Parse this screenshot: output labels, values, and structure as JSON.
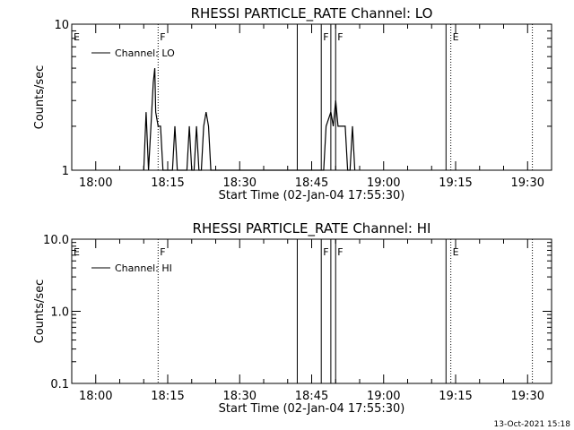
{
  "colors": {
    "background": "#ffffff",
    "foreground": "#000000"
  },
  "footer": {
    "date_stamp": "13-Oct-2021 15:18"
  },
  "chart_data": [
    {
      "type": "line",
      "title": "RHESSI PARTICLE_RATE Channel: LO",
      "xlabel": "Start Time (02-Jan-04 17:55:30)",
      "ylabel": "Counts/sec",
      "y_scale": "log",
      "ylim": [
        1,
        10
      ],
      "y_ticks": [
        {
          "value": 1,
          "label": "1"
        },
        {
          "value": 10,
          "label": "10"
        }
      ],
      "xlim": [
        "17:55",
        "19:35"
      ],
      "x_ticks": [
        "18:00",
        "18:15",
        "18:30",
        "18:45",
        "19:00",
        "19:15",
        "19:30"
      ],
      "legend": {
        "label": "Channel: LO",
        "placement": "top-left"
      },
      "markers": [
        {
          "time": "17:55",
          "label": "E",
          "style": "dotted"
        },
        {
          "time": "18:13",
          "label": "F",
          "style": "dotted"
        },
        {
          "time": "18:42",
          "label": "",
          "style": "solid"
        },
        {
          "time": "18:47",
          "label": "F",
          "style": "solid"
        },
        {
          "time": "18:49",
          "label": "",
          "style": "solid"
        },
        {
          "time": "18:50",
          "label": "F",
          "style": "solid"
        },
        {
          "time": "19:13",
          "label": "",
          "style": "solid"
        },
        {
          "time": "19:14",
          "label": "E",
          "style": "dotted"
        },
        {
          "time": "19:31",
          "label": "",
          "style": "dotted"
        }
      ],
      "series": [
        {
          "name": "Channel: LO",
          "points": [
            [
              "18:10",
              1
            ],
            [
              "18:10.5",
              2.5
            ],
            [
              "18:11",
              1
            ],
            [
              "18:11.5",
              2
            ],
            [
              "18:12",
              4
            ],
            [
              "18:12.3",
              5
            ],
            [
              "18:12.5",
              2.5
            ],
            [
              "18:13",
              2
            ],
            [
              "18:13.5",
              2
            ],
            [
              "18:14",
              1
            ],
            [
              "18:16",
              1
            ],
            [
              "18:16.5",
              2
            ],
            [
              "18:17",
              1
            ],
            [
              "18:19",
              1
            ],
            [
              "18:19.5",
              2
            ],
            [
              "18:20",
              1
            ],
            [
              "18:20.5",
              1
            ],
            [
              "18:21",
              2
            ],
            [
              "18:21.5",
              1
            ],
            [
              "18:22",
              1
            ],
            [
              "18:22.5",
              2
            ],
            [
              "18:23",
              2.5
            ],
            [
              "18:23.5",
              2
            ],
            [
              "18:24",
              1
            ],
            [
              "18:47.5",
              1
            ],
            [
              "18:48",
              2
            ],
            [
              "18:49",
              2.5
            ],
            [
              "18:49.5",
              2
            ],
            [
              "18:50",
              3
            ],
            [
              "18:50.5",
              2
            ],
            [
              "18:51",
              2
            ],
            [
              "18:52",
              2
            ],
            [
              "18:52.5",
              1
            ],
            [
              "18:53",
              1
            ],
            [
              "18:53.5",
              2
            ],
            [
              "18:54",
              1
            ]
          ]
        }
      ]
    },
    {
      "type": "line",
      "title": "RHESSI PARTICLE_RATE Channel: HI",
      "xlabel": "Start Time (02-Jan-04 17:55:30)",
      "ylabel": "Counts/sec",
      "y_scale": "log",
      "ylim": [
        0.1,
        10
      ],
      "y_ticks": [
        {
          "value": 0.1,
          "label": "0.1"
        },
        {
          "value": 1,
          "label": "1.0"
        },
        {
          "value": 10,
          "label": "10.0"
        }
      ],
      "xlim": [
        "17:55",
        "19:35"
      ],
      "x_ticks": [
        "18:00",
        "18:15",
        "18:30",
        "18:45",
        "19:00",
        "19:15",
        "19:30"
      ],
      "legend": {
        "label": "Channel: HI",
        "placement": "top-left"
      },
      "markers": [
        {
          "time": "17:55",
          "label": "E",
          "style": "dotted"
        },
        {
          "time": "18:13",
          "label": "F",
          "style": "dotted"
        },
        {
          "time": "18:42",
          "label": "",
          "style": "solid"
        },
        {
          "time": "18:47",
          "label": "F",
          "style": "solid"
        },
        {
          "time": "18:49",
          "label": "",
          "style": "solid"
        },
        {
          "time": "18:50",
          "label": "F",
          "style": "solid"
        },
        {
          "time": "19:13",
          "label": "",
          "style": "solid"
        },
        {
          "time": "19:14",
          "label": "E",
          "style": "dotted"
        },
        {
          "time": "19:31",
          "label": "",
          "style": "dotted"
        }
      ],
      "series": [
        {
          "name": "Channel: HI",
          "points": []
        }
      ]
    }
  ]
}
